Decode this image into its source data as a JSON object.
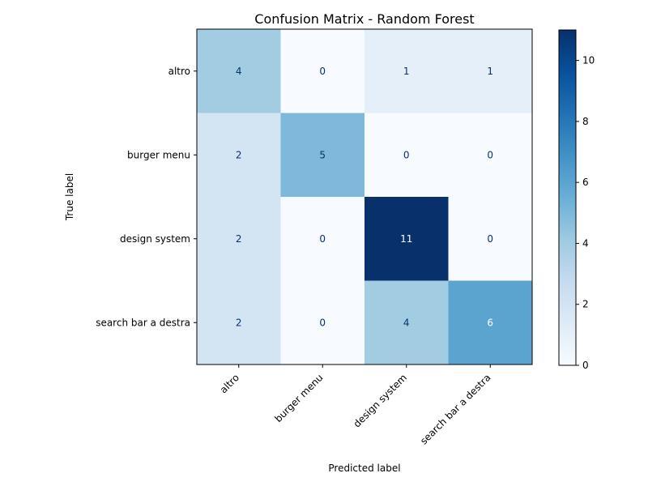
{
  "chart_data": {
    "type": "heatmap",
    "title": "Confusion Matrix - Random Forest",
    "xlabel": "Predicted label",
    "ylabel": "True label",
    "x_categories": [
      "altro",
      "burger menu",
      "design system",
      "search bar a destra"
    ],
    "y_categories": [
      "altro",
      "burger menu",
      "design system",
      "search bar a destra"
    ],
    "values": [
      [
        4,
        0,
        1,
        1
      ],
      [
        2,
        5,
        0,
        0
      ],
      [
        2,
        0,
        11,
        0
      ],
      [
        2,
        0,
        4,
        6
      ]
    ],
    "colormap": "Blues",
    "vmin": 0,
    "vmax": 11,
    "colorbar_ticks": [
      0,
      2,
      4,
      6,
      8,
      10
    ],
    "text_color_light": "#ffffff",
    "text_color_dark": "#08306b"
  }
}
